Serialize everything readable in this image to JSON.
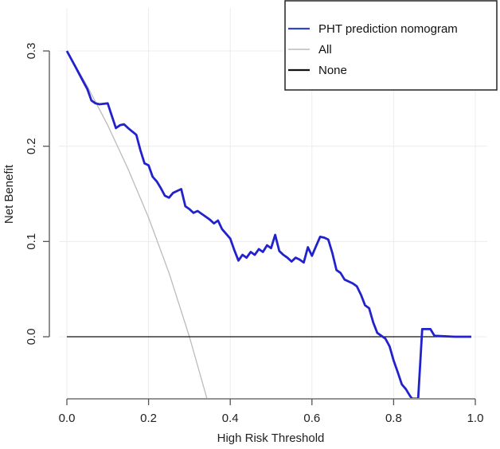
{
  "chart_data": {
    "type": "line",
    "title": "",
    "xlabel": "High Risk Threshold",
    "ylabel": "Net Benefit",
    "xlim": [
      0.0,
      1.0
    ],
    "ylim": [
      -0.065,
      0.3
    ],
    "xticks": [
      0.0,
      0.2,
      0.4,
      0.6,
      0.8,
      1.0
    ],
    "xtick_labels": [
      "0.0",
      "0.2",
      "0.4",
      "0.6",
      "0.8",
      "1.0"
    ],
    "yticks": [
      0.0,
      0.1,
      0.2,
      0.3
    ],
    "ytick_labels": [
      "0.0",
      "0.1",
      "0.2",
      "0.3"
    ],
    "grid": true,
    "legend_position": "top-right",
    "series": [
      {
        "name": "PHT prediction nomogram",
        "color": "#2222cc",
        "x": [
          0.0,
          0.02,
          0.04,
          0.05,
          0.06,
          0.07,
          0.08,
          0.1,
          0.11,
          0.12,
          0.13,
          0.14,
          0.15,
          0.17,
          0.18,
          0.19,
          0.2,
          0.21,
          0.22,
          0.23,
          0.24,
          0.25,
          0.26,
          0.27,
          0.28,
          0.29,
          0.3,
          0.31,
          0.32,
          0.33,
          0.35,
          0.36,
          0.37,
          0.38,
          0.39,
          0.4,
          0.41,
          0.42,
          0.43,
          0.44,
          0.45,
          0.46,
          0.47,
          0.48,
          0.49,
          0.5,
          0.51,
          0.52,
          0.53,
          0.54,
          0.55,
          0.56,
          0.57,
          0.58,
          0.59,
          0.6,
          0.61,
          0.62,
          0.63,
          0.64,
          0.65,
          0.66,
          0.67,
          0.68,
          0.69,
          0.7,
          0.71,
          0.72,
          0.73,
          0.74,
          0.75,
          0.76,
          0.77,
          0.78,
          0.79,
          0.8,
          0.81,
          0.82,
          0.83,
          0.84,
          0.845,
          0.86,
          0.87,
          0.88,
          0.89,
          0.9,
          0.95,
          0.99
        ],
        "y": [
          0.3,
          0.284,
          0.268,
          0.26,
          0.248,
          0.245,
          0.244,
          0.245,
          0.232,
          0.219,
          0.222,
          0.223,
          0.219,
          0.212,
          0.196,
          0.182,
          0.18,
          0.168,
          0.163,
          0.156,
          0.148,
          0.146,
          0.151,
          0.153,
          0.155,
          0.137,
          0.134,
          0.13,
          0.132,
          0.129,
          0.123,
          0.119,
          0.122,
          0.113,
          0.108,
          0.103,
          0.091,
          0.08,
          0.086,
          0.083,
          0.089,
          0.086,
          0.092,
          0.089,
          0.096,
          0.093,
          0.107,
          0.09,
          0.086,
          0.083,
          0.079,
          0.083,
          0.081,
          0.078,
          0.094,
          0.085,
          0.095,
          0.105,
          0.104,
          0.102,
          0.088,
          0.07,
          0.067,
          0.06,
          0.058,
          0.056,
          0.053,
          0.044,
          0.033,
          0.03,
          0.015,
          0.004,
          0.001,
          -0.002,
          -0.01,
          -0.025,
          -0.037,
          -0.05,
          -0.055,
          -0.062,
          -0.065,
          -0.065,
          0.008,
          0.008,
          0.008,
          0.001,
          0.0,
          0.0
        ]
      },
      {
        "name": "All",
        "color": "#bbbbbb",
        "x": [
          0.0,
          0.05,
          0.1,
          0.15,
          0.2,
          0.25,
          0.3,
          0.345
        ],
        "y": [
          0.3,
          0.263,
          0.222,
          0.176,
          0.125,
          0.067,
          0.0,
          -0.068
        ]
      },
      {
        "name": "None",
        "color": "#111111",
        "x": [
          0.0,
          0.99
        ],
        "y": [
          0.0,
          0.0
        ]
      }
    ]
  },
  "legend": {
    "items": [
      {
        "label": "PHT prediction nomogram",
        "color": "#3344cc"
      },
      {
        "label": "All",
        "color": "#bbbbbb"
      },
      {
        "label": "None",
        "color": "#111111"
      }
    ]
  },
  "axes": {
    "xlabel": "High Risk Threshold",
    "ylabel": "Net Benefit"
  }
}
